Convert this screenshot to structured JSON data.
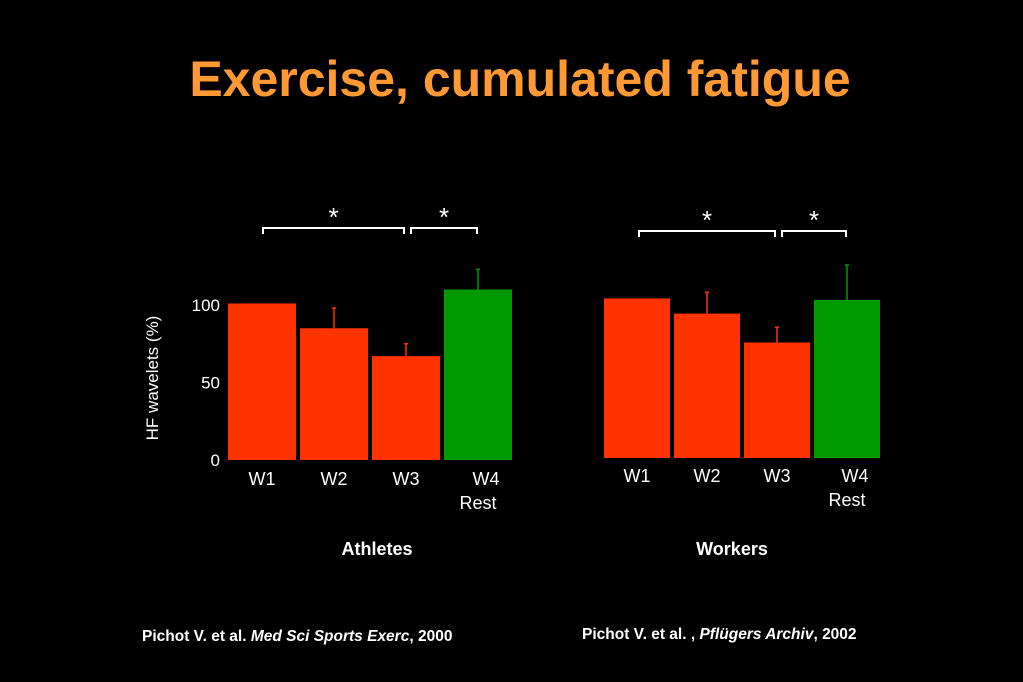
{
  "title": "Exercise, cumulated fatigue",
  "colors": {
    "title": "#ff9933",
    "fatigue": "#ff3300",
    "rest": "#009900",
    "text": "#ffffff",
    "background": "#000000"
  },
  "chart_data": [
    {
      "type": "bar",
      "title": "Athletes",
      "ylabel": "HF wavelets (%)",
      "ylim": [
        0,
        120
      ],
      "yticks": [
        "0",
        "50",
        "100"
      ],
      "categories": [
        [
          "W1"
        ],
        [
          "W2"
        ],
        [
          "W3"
        ],
        [
          "W4",
          "Rest"
        ]
      ],
      "values": [
        101,
        85,
        67,
        110
      ],
      "errors": [
        0,
        13,
        8,
        13
      ],
      "bar_colors": [
        "#ff3300",
        "#ff3300",
        "#ff3300",
        "#009900"
      ],
      "significance": [
        {
          "from": 0,
          "to": 2,
          "label": "*"
        },
        {
          "from": 2,
          "to": 3,
          "label": "*"
        }
      ]
    },
    {
      "type": "bar",
      "title": "Workers",
      "ylim": [
        0,
        120
      ],
      "categories": [
        [
          "W1"
        ],
        [
          "W2"
        ],
        [
          "W3"
        ],
        [
          "W4",
          "Rest"
        ]
      ],
      "values": [
        105,
        95,
        76,
        104
      ],
      "errors": [
        0,
        14,
        10,
        23
      ],
      "bar_colors": [
        "#ff3300",
        "#ff3300",
        "#ff3300",
        "#009900"
      ],
      "significance": [
        {
          "from": 0,
          "to": 2,
          "label": "*"
        },
        {
          "from": 2,
          "to": 3,
          "label": "*"
        }
      ]
    }
  ],
  "citations": [
    {
      "authors": "Pichot V. et al. ",
      "journal": "Med Sci Sports Exerc",
      "rest": ", 2000"
    },
    {
      "authors": "Pichot V. et al. , ",
      "journal": "Pflügers Archiv",
      "rest": ", 2002"
    }
  ]
}
